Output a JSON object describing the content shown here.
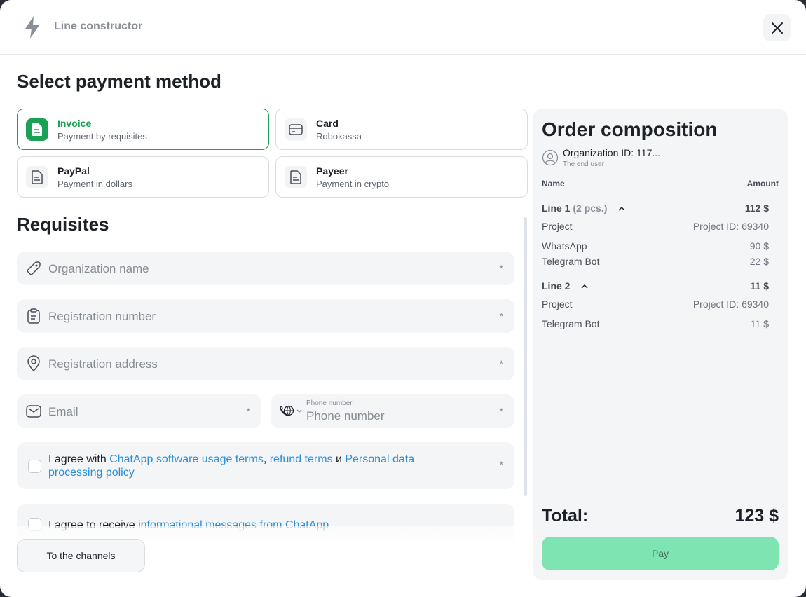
{
  "header": {
    "title": "Line constructor",
    "close_icon": "close-icon",
    "logo_icon": "lightning-icon"
  },
  "payment": {
    "heading": "Select payment method",
    "methods": [
      {
        "title": "Invoice",
        "subtitle": "Payment by requisites",
        "selected": true,
        "icon": "document-icon"
      },
      {
        "title": "Card",
        "subtitle": "Robokassa",
        "selected": false,
        "icon": "card-icon"
      },
      {
        "title": "PayPal",
        "subtitle": "Payment in dollars",
        "selected": false,
        "icon": "document-icon"
      },
      {
        "title": "Payeer",
        "subtitle": "Payment in crypto",
        "selected": false,
        "icon": "document-icon"
      }
    ]
  },
  "requisites": {
    "heading": "Requisites",
    "required_mark": "*",
    "organization_name": {
      "placeholder": "Organization name",
      "icon": "tag-icon"
    },
    "registration_number": {
      "placeholder": "Registration number",
      "icon": "clipboard-icon"
    },
    "registration_address": {
      "placeholder": "Registration address",
      "icon": "location-pin-icon"
    },
    "email": {
      "placeholder": "Email",
      "icon": "envelope-icon"
    },
    "phone": {
      "label": "Phone number",
      "placeholder": "Phone number",
      "icon": "phone-globe-icon"
    }
  },
  "terms": {
    "prefix": "I agree with ",
    "link1": "ChatApp software usage terms",
    "sep1": ", ",
    "link2": "refund terms",
    "sep2": " и ",
    "link3": "Personal data processing policy"
  },
  "marketing": {
    "prefix": "I agree to receive ",
    "link": "informational messages from ChatApp"
  },
  "back_button": "To the channels",
  "order": {
    "title": "Order composition",
    "organization": "Organization ID: 117...",
    "end_user": "The end user",
    "col_name": "Name",
    "col_amount": "Amount",
    "lines": [
      {
        "label": "Line 1",
        "qty": "(2 pcs.)",
        "amount": "112 $",
        "items": [
          {
            "name": "Project",
            "value": "Project ID: 69340"
          },
          {
            "name": "WhatsApp",
            "value": "90 $"
          },
          {
            "name": "Telegram Bot",
            "value": "22 $"
          }
        ]
      },
      {
        "label": "Line 2",
        "qty": "",
        "amount": "11 $",
        "items": [
          {
            "name": "Project",
            "value": "Project ID: 69340"
          },
          {
            "name": "Telegram Bot",
            "value": "11 $"
          }
        ]
      }
    ],
    "total_label": "Total:",
    "total_value": "123 $",
    "pay_button": "Pay"
  },
  "colors": {
    "accent": "#1aa156",
    "link": "#2a8fd6",
    "pay": "#7ee5b2"
  }
}
